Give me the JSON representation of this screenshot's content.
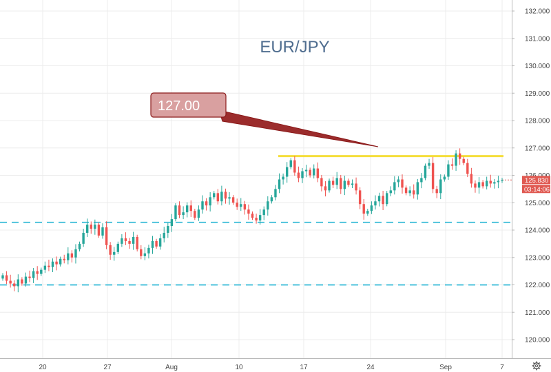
{
  "symbol": "EUR/JPY",
  "callout": {
    "text": "127.00"
  },
  "last_price": {
    "price_label": "125.830",
    "countdown_label": "03:14:06",
    "value": 125.83
  },
  "price_axis": {
    "ticks": [
      "120.000",
      "121.000",
      "122.000",
      "123.000",
      "124.000",
      "125.000",
      "126.000",
      "127.000",
      "128.000",
      "129.000",
      "130.000",
      "131.000",
      "132.000"
    ]
  },
  "time_axis": {
    "labels": [
      "20",
      "27",
      "Aug",
      "10",
      "17",
      "24",
      "Sep",
      "7"
    ]
  },
  "settings_icon": "gear-icon",
  "colors": {
    "up": "#26a69a",
    "down": "#ef5350",
    "resistance": "#f5de3c",
    "support": "#4fc3dc",
    "callout_fill": "#d9a0a0",
    "callout_border": "#8b1a1a",
    "last_price_tag": "#e05a52",
    "grid": "#ececec"
  },
  "chart_data": {
    "type": "candlestick",
    "title": "EUR/JPY",
    "y_range": [
      119.6,
      132.3
    ],
    "horizontal_lines": [
      {
        "kind": "support",
        "price": 122.0,
        "style": "dashed"
      },
      {
        "kind": "support",
        "price": 124.28,
        "style": "dashed"
      },
      {
        "kind": "resistance",
        "price": 126.7,
        "style": "solid"
      }
    ],
    "annotation": {
      "text": "127.00"
    },
    "close_prices": [
      122.35,
      122.15,
      122.05,
      121.95,
      122.2,
      122.05,
      122.3,
      122.25,
      122.5,
      122.4,
      122.55,
      122.7,
      122.65,
      122.85,
      122.75,
      122.95,
      122.9,
      123.15,
      123.0,
      123.3,
      123.5,
      123.9,
      124.2,
      124.05,
      124.2,
      123.8,
      124.1,
      123.45,
      123.1,
      123.2,
      123.5,
      123.7,
      123.6,
      123.5,
      123.75,
      123.3,
      123.05,
      123.15,
      123.35,
      123.6,
      123.4,
      123.7,
      123.9,
      124.15,
      124.4,
      124.9,
      124.55,
      124.65,
      124.9,
      124.7,
      124.45,
      124.75,
      125.05,
      124.9,
      125.2,
      125.35,
      125.05,
      125.4,
      125.15,
      125.2,
      125.0,
      124.85,
      124.95,
      124.75,
      124.6,
      124.45,
      124.35,
      124.55,
      124.75,
      125.05,
      125.2,
      125.5,
      125.85,
      125.95,
      126.3,
      126.55,
      126.1,
      125.9,
      126.15,
      126.2,
      126.0,
      126.25,
      125.9,
      125.6,
      125.45,
      125.8,
      125.65,
      125.9,
      125.5,
      125.8,
      125.65,
      125.7,
      125.45,
      124.95,
      124.6,
      124.7,
      124.9,
      125.05,
      125.25,
      124.95,
      125.35,
      125.45,
      125.75,
      125.85,
      125.55,
      125.35,
      125.45,
      125.3,
      125.75,
      125.9,
      126.35,
      126.45,
      125.5,
      125.35,
      125.85,
      125.95,
      126.4,
      126.35,
      126.8,
      126.6,
      126.45,
      126.05,
      125.7,
      125.55,
      125.75,
      125.6,
      125.8,
      125.7,
      125.75,
      125.8,
      125.83
    ]
  }
}
